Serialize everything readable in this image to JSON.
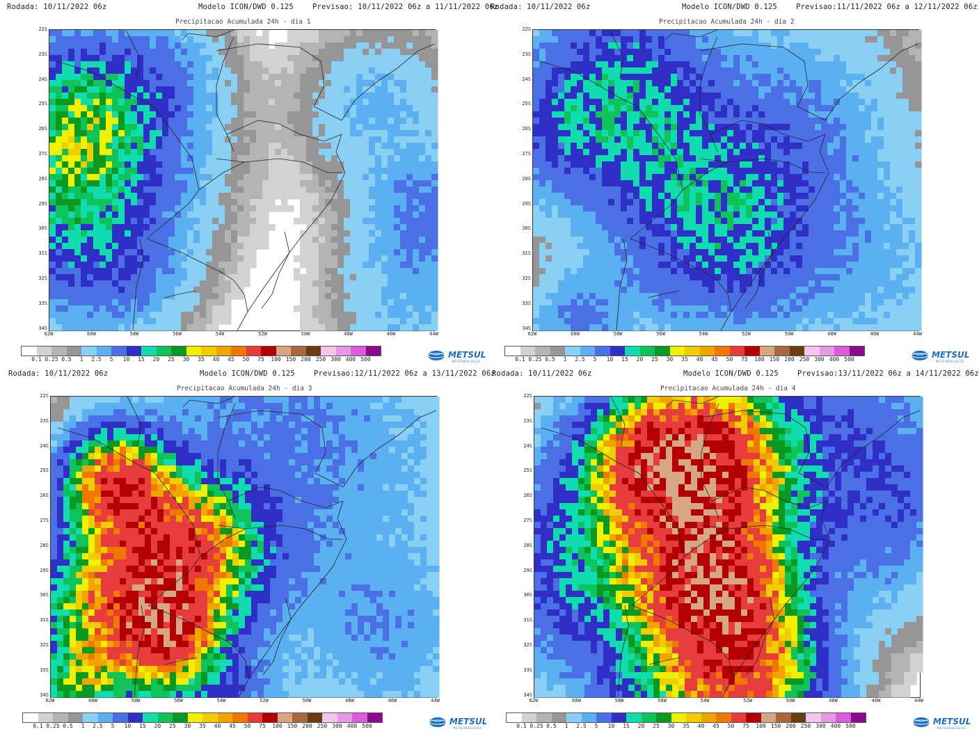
{
  "panels": [
    {
      "run": "Rodada: 10/11/2022 06z",
      "model": "Modelo ICON/DWD 0.125",
      "forecast": "Previsao: 10/11/2022 06z a 11/11/2022 06z",
      "title": "Precipitacao Acumulada 24h - dia 1",
      "intensity": 1
    },
    {
      "run": "Rodada: 10/11/2022 06z",
      "model": "Modelo ICON/DWD 0.125",
      "forecast": "Previsao:11/11/2022 06z a 12/11/2022 06z",
      "title": "Precipitacao Acumulada 24h - dia 2",
      "intensity": 2
    },
    {
      "run": "Rodada: 10/11/2022 06z",
      "model": "Modelo ICON/DWD 0.125",
      "forecast": "Previsao:12/11/2022 06z a 13/11/2022 06z",
      "title": "Precipitacao Acumulada 24h - dia 3",
      "intensity": 3
    },
    {
      "run": "Rodada: 10/11/2022 06z",
      "model": "Modelo ICON/DWD 0.125",
      "forecast": "Previsao:13/11/2022 06z a 14/11/2022 06z",
      "title": "Precipitacao Acumulada 24h - dia 4",
      "intensity": 4
    }
  ],
  "lat_labels": [
    "22S",
    "23S",
    "24S",
    "25S",
    "26S",
    "27S",
    "28S",
    "29S",
    "30S",
    "31S",
    "32S",
    "33S",
    "34S"
  ],
  "lon_labels": [
    "62W",
    "60W",
    "58W",
    "56W",
    "54W",
    "52W",
    "50W",
    "48W",
    "46W",
    "44W"
  ],
  "legend": {
    "labels": [
      "0.1",
      "0.25",
      "0.5",
      "1",
      "2.5",
      "5",
      "10",
      "15",
      "20",
      "25",
      "30",
      "35",
      "40",
      "45",
      "50",
      "75",
      "100",
      "150",
      "200",
      "250",
      "300",
      "400",
      "500"
    ],
    "colors": [
      "#ffffff",
      "#d2d2d2",
      "#b4b4b4",
      "#969696",
      "#8ad0f5",
      "#5ab0f0",
      "#4b70e6",
      "#2f2fc8",
      "#10dcb0",
      "#0ec45a",
      "#0a9a22",
      "#f0f000",
      "#f0cc00",
      "#f0a400",
      "#f07800",
      "#e63c3c",
      "#b40000",
      "#d7a785",
      "#a8683c",
      "#6a3c12",
      "#f2c6ef",
      "#e69ae6",
      "#dc5adc",
      "#8c0a8c"
    ]
  },
  "logo": {
    "name": "METSUL",
    "tagline": "METEOROLOGIA"
  }
}
